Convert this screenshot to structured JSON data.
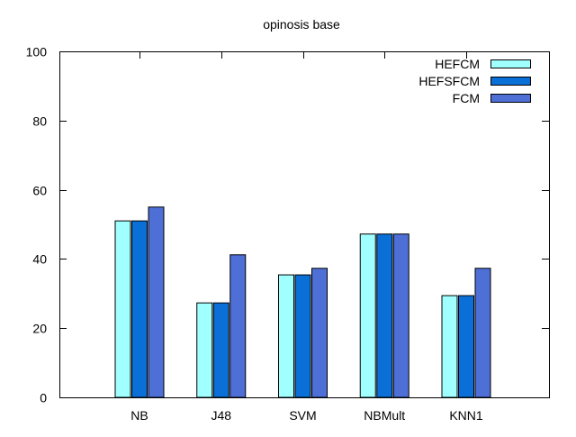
{
  "chart_data": {
    "type": "bar",
    "title": "opinosis base",
    "xlabel": "",
    "ylabel": "",
    "categories": [
      "NB",
      "J48",
      "SVM",
      "NBMult",
      "KNN1"
    ],
    "ylim": [
      0,
      100
    ],
    "yticks": [
      0,
      20,
      40,
      60,
      80,
      100
    ],
    "grid": false,
    "legend_position": "top-right",
    "series": [
      {
        "name": "HEFCM",
        "color": "#a0ffff",
        "values": [
          51,
          27.3,
          35.4,
          47.2,
          29.4
        ]
      },
      {
        "name": "HEFSFCM",
        "color": "#0a6fd6",
        "values": [
          51,
          27.3,
          35.4,
          47.2,
          29.4
        ]
      },
      {
        "name": "FCM",
        "color": "#4d6fd6",
        "values": [
          55,
          41.2,
          37.3,
          47.2,
          37.3
        ]
      }
    ]
  }
}
